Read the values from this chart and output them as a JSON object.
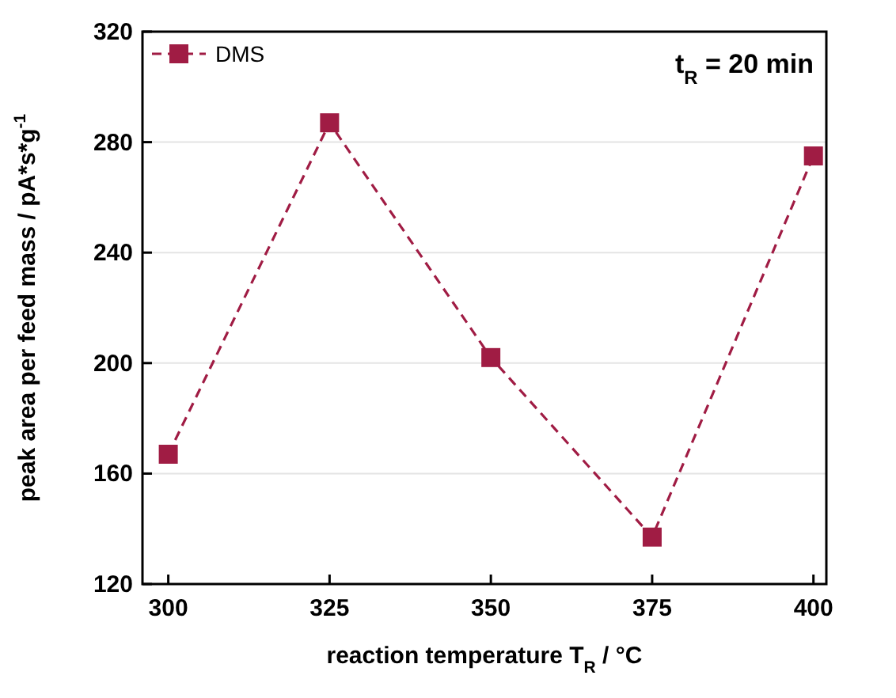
{
  "chart_data": {
    "type": "line",
    "xlabel": "reaction temperature T$_{R}$ / °C",
    "ylabel": "peak area per feed mass / pA*s*g$^{-1}$",
    "x": [
      300,
      325,
      350,
      375,
      400
    ],
    "series": [
      {
        "name": "DMS",
        "color": "#a01c44",
        "values": [
          167,
          287,
          202,
          137,
          275
        ]
      }
    ],
    "xlim": [
      296,
      402
    ],
    "xticks": [
      300,
      325,
      350,
      375,
      400
    ],
    "ylim": [
      120,
      320
    ],
    "yticks": [
      120,
      160,
      200,
      240,
      280,
      320
    ],
    "grid": "y",
    "legend": "top left",
    "marker": "square",
    "line_style": "dashed",
    "annotations": [
      "t$_{R}$ = 20 min"
    ]
  }
}
